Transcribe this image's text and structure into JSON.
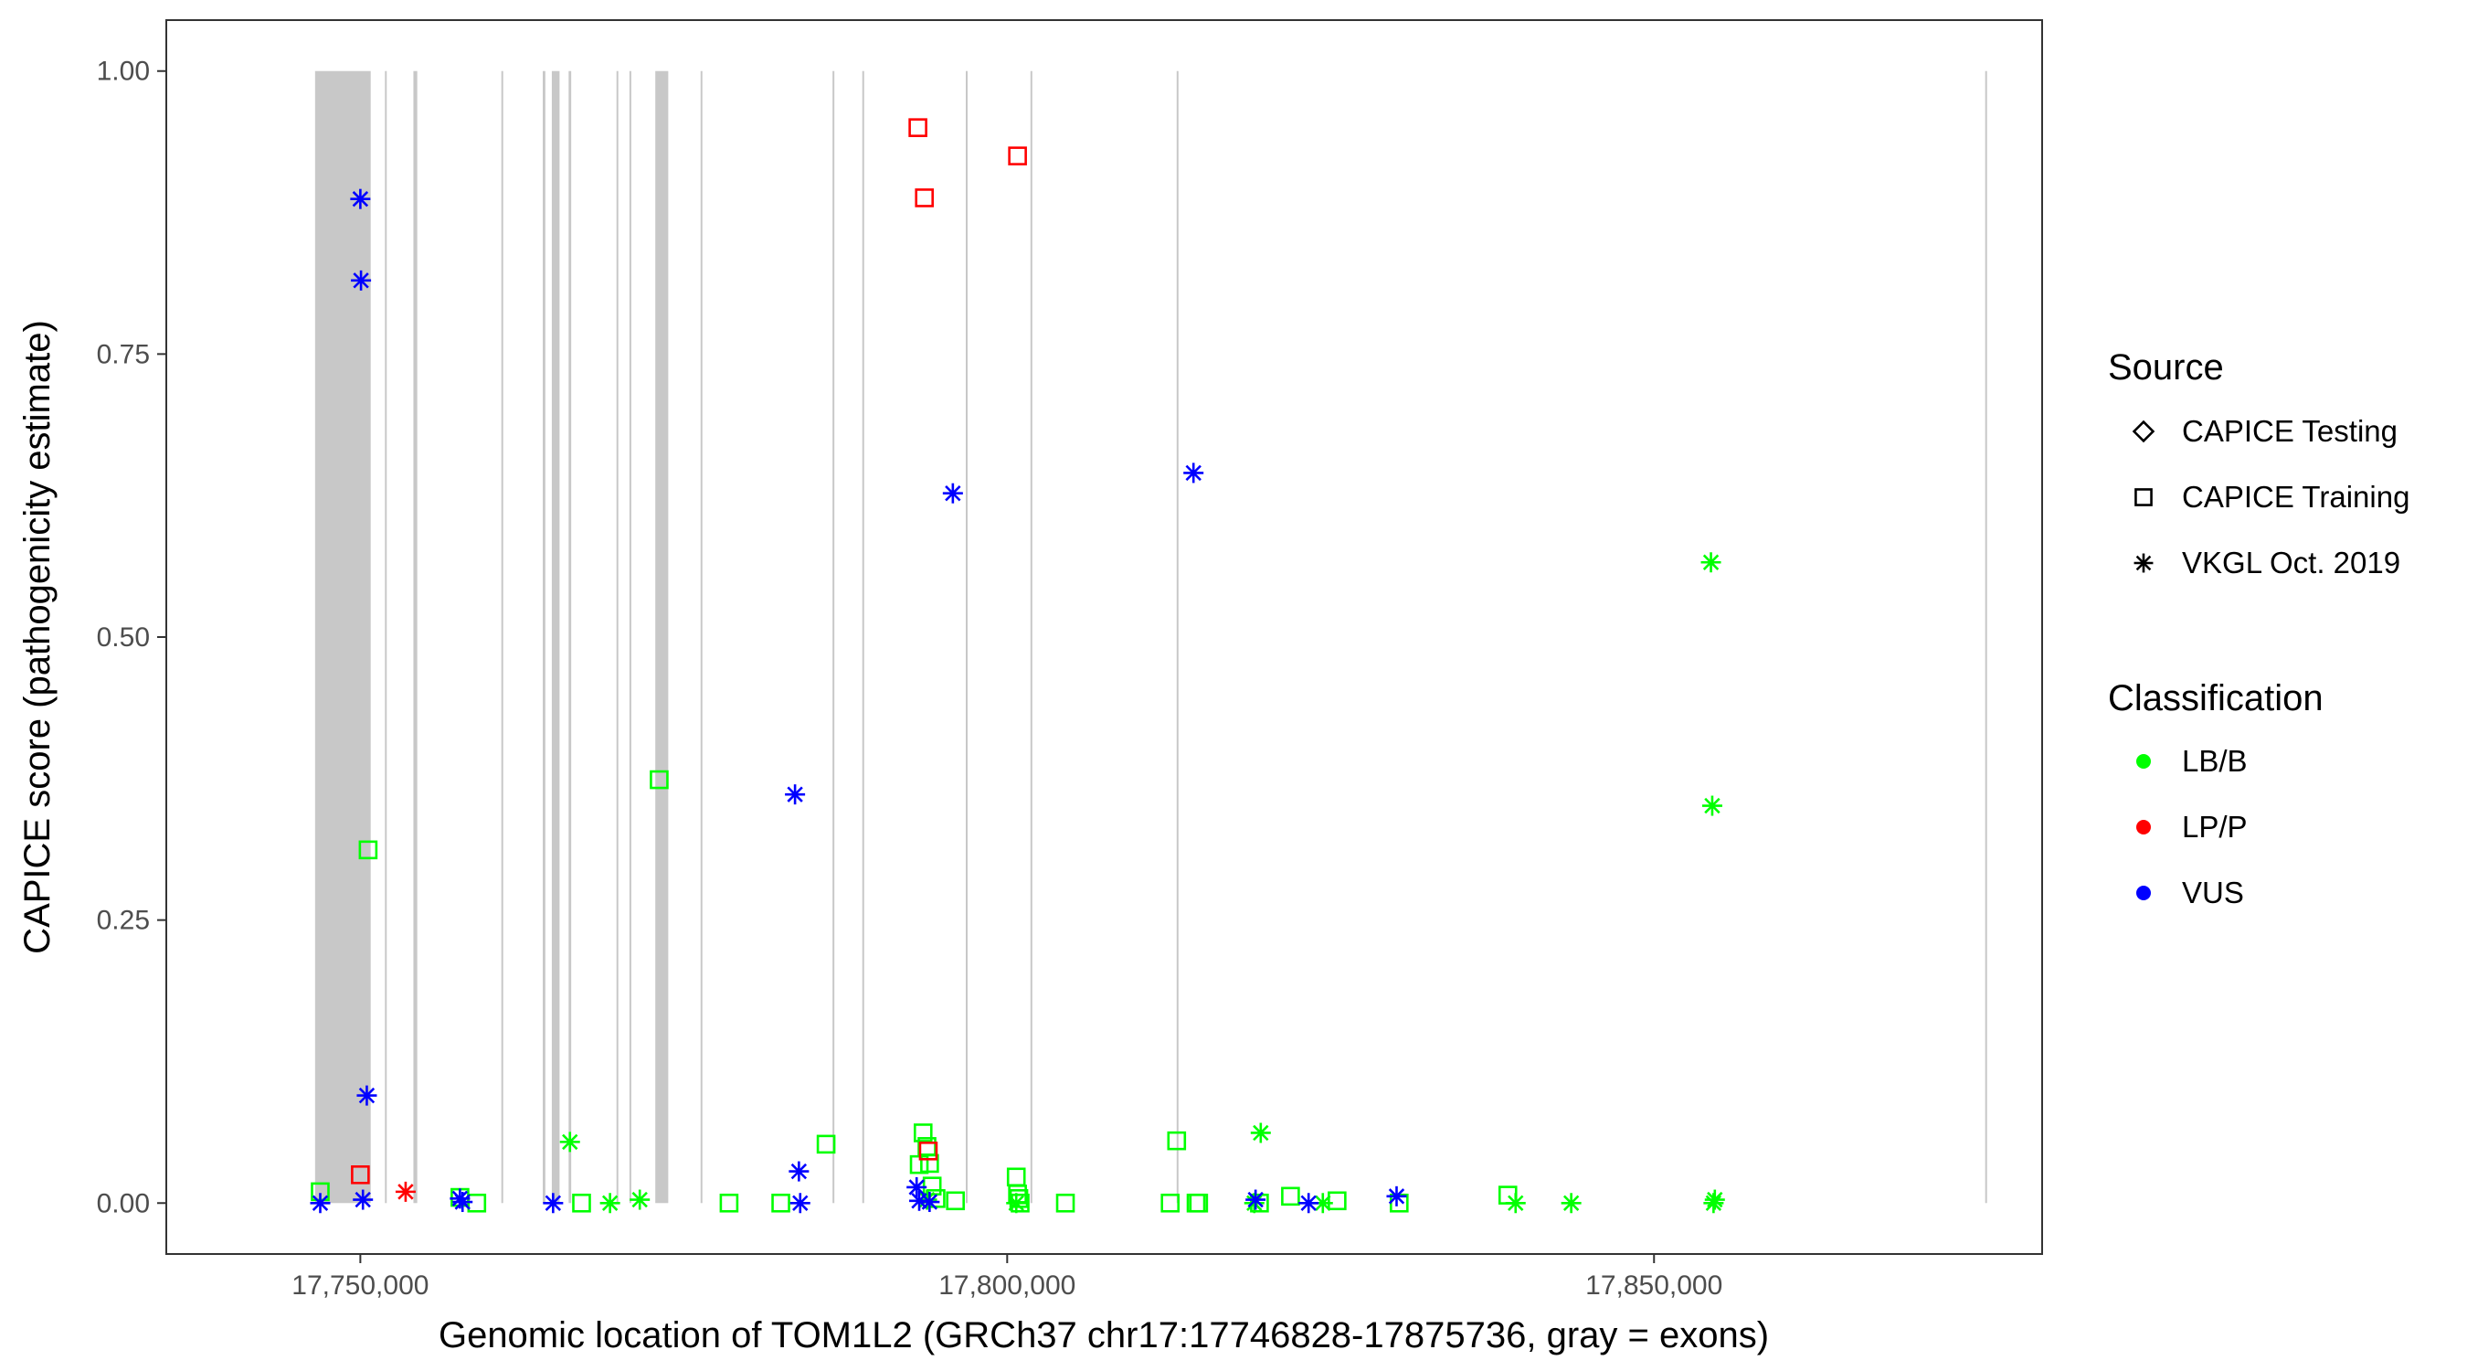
{
  "chart_data": {
    "type": "scatter",
    "title": "",
    "xlabel": "Genomic location of TOM1L2 (GRCh37 chr17:17746828-17875736, gray = exons)",
    "ylabel": "CAPICE score (pathogenicity estimate)",
    "xlim": [
      17735000,
      17880000
    ],
    "ylim": [
      -0.045,
      1.045
    ],
    "x_ticks": [
      17750000,
      17800000,
      17850000
    ],
    "x_tick_labels": [
      "17,750,000",
      "17,800,000",
      "17,850,000"
    ],
    "y_ticks": [
      0,
      0.25,
      0.5,
      0.75,
      1
    ],
    "y_tick_labels": [
      "0.00",
      "0.25",
      "0.50",
      "0.75",
      "1.00"
    ],
    "grid": false,
    "legend_position": "right",
    "exons": [
      [
        17746500,
        17750800
      ],
      [
        17751900,
        17752000
      ],
      [
        17754100,
        17754400
      ],
      [
        17760900,
        17761000
      ],
      [
        17764100,
        17764300
      ],
      [
        17764800,
        17765400
      ],
      [
        17766100,
        17766300
      ],
      [
        17769800,
        17769900
      ],
      [
        17770800,
        17770900
      ],
      [
        17772800,
        17773800
      ],
      [
        17776300,
        17776400
      ],
      [
        17786500,
        17786600
      ],
      [
        17788800,
        17788900
      ],
      [
        17796800,
        17796900
      ],
      [
        17801800,
        17801900
      ],
      [
        17813100,
        17813200
      ],
      [
        17875600,
        17875700
      ]
    ],
    "legend": {
      "source_title": "Source",
      "source_items": [
        {
          "label": "CAPICE Testing",
          "shape": "diamond"
        },
        {
          "label": "CAPICE Training",
          "shape": "square"
        },
        {
          "label": "VKGL Oct. 2019",
          "shape": "asterisk"
        }
      ],
      "class_title": "Classification",
      "class_items": [
        {
          "label": "LB/B",
          "color": "#00ff00"
        },
        {
          "label": "LP/P",
          "color": "#ff0000"
        },
        {
          "label": "VUS",
          "color": "#0000ff"
        }
      ]
    },
    "series": [
      {
        "name": "CAPICE Training",
        "shape": "square",
        "classification": "LB/B",
        "points": [
          [
            17746900,
            0.01
          ],
          [
            17750600,
            0.312
          ],
          [
            17757700,
            0.005
          ],
          [
            17759000,
            0.0
          ],
          [
            17767100,
            0.0
          ],
          [
            17773100,
            0.374
          ],
          [
            17778500,
            0.0
          ],
          [
            17782500,
            0.0
          ],
          [
            17786000,
            0.052
          ],
          [
            17793200,
            0.034
          ],
          [
            17793500,
            0.062
          ],
          [
            17793800,
            0.05
          ],
          [
            17794000,
            0.035
          ],
          [
            17794200,
            0.015
          ],
          [
            17794500,
            0.004
          ],
          [
            17796000,
            0.002
          ],
          [
            17800700,
            0.023
          ],
          [
            17800800,
            0.008
          ],
          [
            17800900,
            0.004
          ],
          [
            17801000,
            0.0
          ],
          [
            17804500,
            0.0
          ],
          [
            17812600,
            0.0
          ],
          [
            17813100,
            0.055
          ],
          [
            17814600,
            0.0
          ],
          [
            17814800,
            0.0
          ],
          [
            17819500,
            0.0
          ],
          [
            17821900,
            0.006
          ],
          [
            17825500,
            0.002
          ],
          [
            17830300,
            0.0
          ],
          [
            17838700,
            0.007
          ]
        ]
      },
      {
        "name": "CAPICE Training",
        "shape": "square",
        "classification": "LP/P",
        "points": [
          [
            17750000,
            0.025
          ],
          [
            17793100,
            0.95
          ],
          [
            17793600,
            0.888
          ],
          [
            17793900,
            0.046
          ],
          [
            17800800,
            0.925
          ]
        ]
      },
      {
        "name": "VKGL Oct. 2019",
        "shape": "asterisk",
        "classification": "LB/B",
        "points": [
          [
            17766200,
            0.054
          ],
          [
            17769300,
            0.0
          ],
          [
            17771600,
            0.003
          ],
          [
            17793800,
            0.003
          ],
          [
            17800700,
            0.0
          ],
          [
            17819100,
            0.0
          ],
          [
            17819600,
            0.062
          ],
          [
            17824400,
            0.0
          ],
          [
            17839300,
            0.0
          ],
          [
            17843600,
            0.0
          ],
          [
            17854400,
            0.566
          ],
          [
            17854500,
            0.351
          ],
          [
            17854600,
            0.0
          ],
          [
            17854700,
            0.003
          ]
        ]
      },
      {
        "name": "VKGL Oct. 2019",
        "shape": "asterisk",
        "classification": "LP/P",
        "points": [
          [
            17753500,
            0.01
          ]
        ]
      },
      {
        "name": "VKGL Oct. 2019",
        "shape": "asterisk",
        "classification": "VUS",
        "points": [
          [
            17746900,
            0.0
          ],
          [
            17750000,
            0.887
          ],
          [
            17750050,
            0.815
          ],
          [
            17750200,
            0.003
          ],
          [
            17750500,
            0.095
          ],
          [
            17757700,
            0.004
          ],
          [
            17757900,
            0.001
          ],
          [
            17764900,
            0.0
          ],
          [
            17783600,
            0.361
          ],
          [
            17783900,
            0.028
          ],
          [
            17784000,
            0.0
          ],
          [
            17793000,
            0.014
          ],
          [
            17793200,
            0.002
          ],
          [
            17794000,
            0.001
          ],
          [
            17795800,
            0.627
          ],
          [
            17814400,
            0.645
          ],
          [
            17819200,
            0.003
          ],
          [
            17823300,
            0.0
          ],
          [
            17830100,
            0.006
          ]
        ]
      }
    ]
  }
}
